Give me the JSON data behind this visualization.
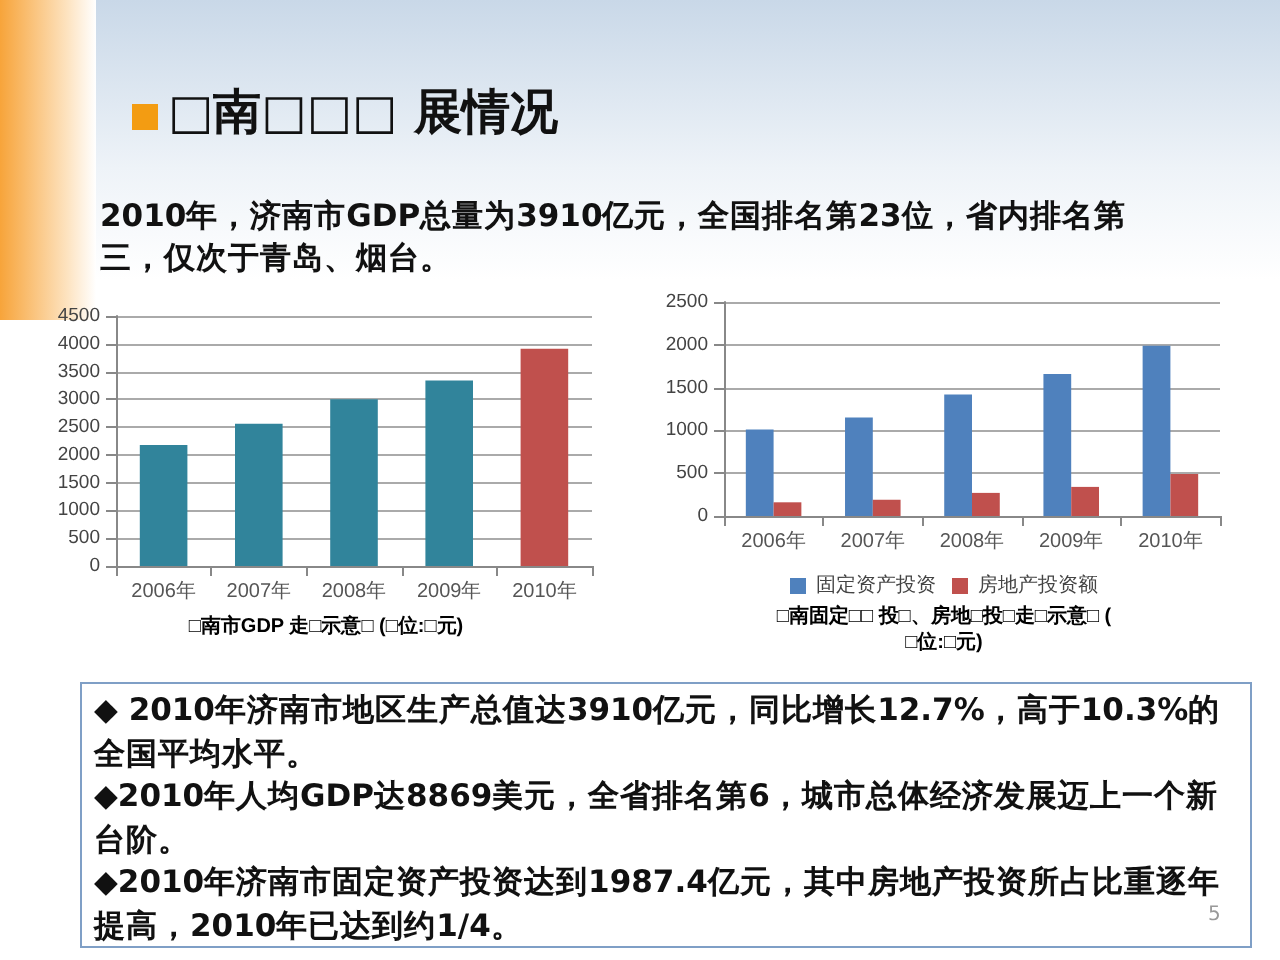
{
  "chart_data": [
    {
      "type": "bar",
      "title": "□南□□□ 展情况",
      "subtitle": "2010年，济南市GDP总量为3910亿元，全国排名第23位，省内排名第三，仅次于青岛、烟台。",
      "xlabel": "□南市GDP 走□示意□ (□位:□元)",
      "categories": [
        "2006年",
        "2007年",
        "2008年",
        "2009年",
        "2010年"
      ],
      "values": [
        2180,
        2560,
        3000,
        3340,
        3910
      ],
      "colors": [
        "#31849b",
        "#31849b",
        "#31849b",
        "#31849b",
        "#c0504d"
      ],
      "ylim": [
        0,
        4500
      ],
      "yticks": [
        0,
        500,
        1000,
        1500,
        2000,
        2500,
        3000,
        3500,
        4000,
        4500
      ],
      "grid": "y",
      "legend": false
    },
    {
      "type": "bar",
      "xlabel": "□南固定□□ 投□、房地□投□走□示意□ (□位:□元)",
      "categories": [
        "2006年",
        "2007年",
        "2008年",
        "2009年",
        "2010年"
      ],
      "series": [
        {
          "name": "固定资产投资",
          "color": "#4f81bd",
          "values": [
            1010,
            1150,
            1420,
            1660,
            1990
          ]
        },
        {
          "name": "房地产投资额",
          "color": "#c0504d",
          "values": [
            160,
            190,
            270,
            340,
            490
          ]
        }
      ],
      "ylim": [
        0,
        2500
      ],
      "yticks": [
        0,
        500,
        1000,
        1500,
        2000,
        2500
      ],
      "grid": "y",
      "legend": "bottom",
      "annotations": [
        "◆ 2010年济南市地区生产总值达3910亿元，同比增长12.7%，高于10.3%的全国平均水平。",
        "◆2010年人均GDP达8869美元，全省排名第6，城市总体经济发展迈上一个新台阶。",
        "◆2010年济南市固定资产投资达到1987.4亿元，其中房地产投资所占比重逐年提高，2010年已达到约1/4。",
        "5"
      ]
    }
  ]
}
